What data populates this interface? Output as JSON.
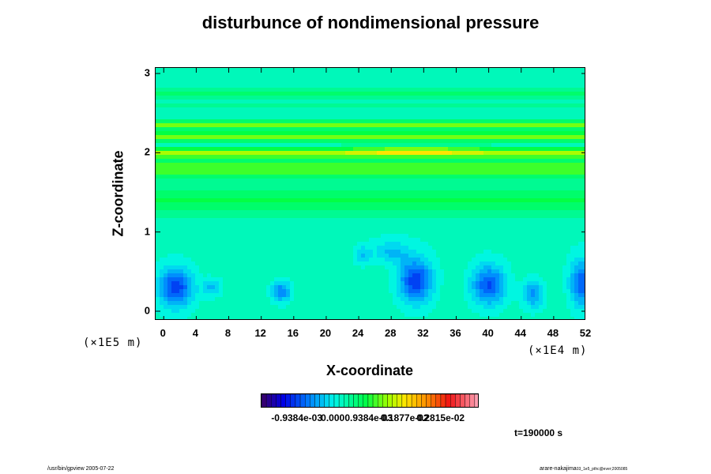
{
  "chart_data": {
    "type": "heatmap",
    "title": "disturbunce of nondimensional pressure",
    "xlabel": "X-coordinate",
    "ylabel": "Z-coordinate",
    "x_scale_label": "(×1E4 m)",
    "y_scale_label": "(×1E5 m)",
    "x_ticks": [
      "0",
      "4",
      "8",
      "12",
      "16",
      "20",
      "24",
      "28",
      "32",
      "36",
      "40",
      "44",
      "48",
      "52"
    ],
    "y_ticks": [
      "0",
      "1",
      "2",
      "3"
    ],
    "xlim": [
      -1,
      52
    ],
    "ylim": [
      -0.12,
      3.07
    ],
    "colorbar_labels": [
      "-0.9384e-03",
      "0.000",
      "0.9384e-03",
      "0.1877e-02",
      "0.2815e-02"
    ],
    "colorbar_values": [
      -0.0009384,
      0,
      0.0009384,
      0.001877,
      0.002815
    ],
    "colorbar_range": [
      -0.00188,
      0.00381
    ],
    "background_value": 0.0002,
    "bands": [
      {
        "z": 2.0,
        "value": 0.0014,
        "sigma": 0.06
      },
      {
        "z": 2.2,
        "value": 0.0013,
        "sigma": 0.06
      },
      {
        "z": 2.35,
        "value": 0.0012,
        "sigma": 0.05
      },
      {
        "z": 1.8,
        "value": 0.0011,
        "sigma": 0.12
      },
      {
        "z": 2.58,
        "value": 0.0005,
        "sigma": 0.03
      },
      {
        "z": 2.75,
        "value": 0.0007,
        "sigma": 0.06
      },
      {
        "z": 1.4,
        "value": 0.0008,
        "sigma": 0.18
      },
      {
        "z": 0.3,
        "value": 0.0003,
        "sigma": 0.35
      }
    ],
    "highlights": [
      {
        "x": 31,
        "z": 2.02,
        "value": 0.002,
        "sx": 7,
        "sz": 0.05
      }
    ],
    "minima": [
      {
        "x": 1.5,
        "z": 0.3,
        "value": -0.0011,
        "sx": 2.2,
        "sz": 0.25
      },
      {
        "x": 6,
        "z": 0.3,
        "value": -0.0004,
        "sx": 1.2,
        "sz": 0.12
      },
      {
        "x": 14.5,
        "z": 0.25,
        "value": -0.0007,
        "sx": 1.3,
        "sz": 0.14
      },
      {
        "x": 24.5,
        "z": 0.7,
        "value": -0.0003,
        "sx": 1.0,
        "sz": 0.12
      },
      {
        "x": 28,
        "z": 0.75,
        "value": -0.0003,
        "sx": 2.2,
        "sz": 0.15
      },
      {
        "x": 31,
        "z": 0.38,
        "value": -0.0011,
        "sx": 2.2,
        "sz": 0.28
      },
      {
        "x": 40,
        "z": 0.33,
        "value": -0.001,
        "sx": 2.2,
        "sz": 0.25
      },
      {
        "x": 45.5,
        "z": 0.22,
        "value": -0.0006,
        "sx": 1.4,
        "sz": 0.18
      },
      {
        "x": 51.5,
        "z": 0.35,
        "value": -0.0009,
        "sx": 1.6,
        "sz": 0.3
      }
    ]
  },
  "annotations": {
    "time": "t=190000 s",
    "footer_left": "/usr/bin/gpview 2005-07-22",
    "footer_right_main": "arare-nakajima",
    "footer_right_sub": "03_1e5_pthc@ever;2005085"
  }
}
